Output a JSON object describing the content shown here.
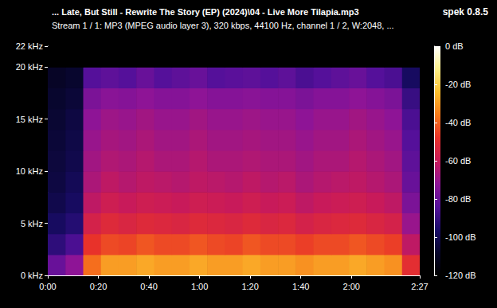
{
  "chart_data": {
    "type": "heatmap",
    "title": "... Late, But Still - Rewrite The Story (EP) (2024)\\04 - Live More Tilapia.mp3",
    "subtitle": "Stream 1 / 1: MP3 (MPEG audio layer 3), 320 kbps, 44100 Hz, channel 1 / 2, W:2048, ...",
    "annotations": [
      "spek 0.8.5"
    ],
    "xlim": [
      0,
      147
    ],
    "xticks": [
      {
        "value": 0,
        "label": "0:00"
      },
      {
        "value": 20,
        "label": "0:20"
      },
      {
        "value": 40,
        "label": "0:40"
      },
      {
        "value": 60,
        "label": "1:00"
      },
      {
        "value": 80,
        "label": "1:20"
      },
      {
        "value": 100,
        "label": "1:40"
      },
      {
        "value": 120,
        "label": "2:00"
      },
      {
        "value": 147,
        "label": "2:27"
      }
    ],
    "ylim": [
      0,
      22
    ],
    "yticks": [
      {
        "value": 0,
        "label": "0 kHz"
      },
      {
        "value": 5,
        "label": "5 kHz"
      },
      {
        "value": 10,
        "label": "10 kHz"
      },
      {
        "value": 15,
        "label": "15 kHz"
      },
      {
        "value": 20,
        "label": "20 kHz"
      },
      {
        "value": 22,
        "label": "22 kHz"
      }
    ],
    "x_bins": [
      0,
      7,
      14,
      21,
      28,
      35,
      42,
      49,
      56,
      63,
      70,
      77,
      84,
      91,
      98,
      105,
      112,
      119,
      126,
      133,
      140,
      147
    ],
    "y_bins": [
      0,
      2,
      4,
      6,
      8,
      10,
      12,
      14,
      16,
      18,
      20,
      22
    ],
    "cells": [
      [
        -80,
        -72,
        -38,
        -30,
        -30,
        -28,
        -30,
        -30,
        -28,
        -30,
        -30,
        -28,
        -30,
        -30,
        -32,
        -30,
        -30,
        -28,
        -30,
        -32,
        -50
      ],
      [
        -92,
        -86,
        -48,
        -44,
        -45,
        -42,
        -44,
        -44,
        -42,
        -44,
        -45,
        -42,
        -44,
        -44,
        -46,
        -44,
        -44,
        -42,
        -44,
        -46,
        -62
      ],
      [
        -98,
        -94,
        -56,
        -52,
        -54,
        -52,
        -53,
        -54,
        -52,
        -53,
        -54,
        -52,
        -54,
        -53,
        -56,
        -54,
        -53,
        -52,
        -54,
        -56,
        -70
      ],
      [
        -102,
        -98,
        -62,
        -58,
        -60,
        -58,
        -59,
        -60,
        -58,
        -59,
        -60,
        -58,
        -60,
        -59,
        -62,
        -60,
        -59,
        -58,
        -60,
        -62,
        -76
      ],
      [
        -104,
        -100,
        -66,
        -62,
        -64,
        -62,
        -63,
        -64,
        -62,
        -63,
        -64,
        -62,
        -64,
        -63,
        -66,
        -64,
        -63,
        -62,
        -64,
        -66,
        -80
      ],
      [
        -105,
        -102,
        -68,
        -65,
        -66,
        -64,
        -66,
        -66,
        -64,
        -66,
        -66,
        -65,
        -66,
        -66,
        -68,
        -66,
        -66,
        -64,
        -66,
        -68,
        -82
      ],
      [
        -106,
        -103,
        -70,
        -67,
        -68,
        -66,
        -68,
        -68,
        -66,
        -68,
        -68,
        -67,
        -68,
        -68,
        -70,
        -68,
        -68,
        -66,
        -68,
        -70,
        -84
      ],
      [
        -107,
        -104,
        -72,
        -69,
        -70,
        -68,
        -70,
        -70,
        -68,
        -70,
        -70,
        -69,
        -70,
        -70,
        -72,
        -70,
        -70,
        -68,
        -70,
        -72,
        -86
      ],
      [
        -108,
        -106,
        -76,
        -73,
        -74,
        -72,
        -74,
        -74,
        -72,
        -74,
        -74,
        -73,
        -74,
        -74,
        -76,
        -74,
        -74,
        -72,
        -74,
        -76,
        -90
      ],
      [
        -110,
        -108,
        -84,
        -82,
        -84,
        -80,
        -84,
        -82,
        -80,
        -84,
        -83,
        -82,
        -84,
        -82,
        -86,
        -84,
        -82,
        -80,
        -84,
        -86,
        -98
      ],
      [
        -120,
        -120,
        -120,
        -120,
        -120,
        -120,
        -120,
        -120,
        -120,
        -120,
        -120,
        -120,
        -120,
        -120,
        -120,
        -120,
        -120,
        -120,
        -120,
        -120,
        -120
      ]
    ],
    "colorbar": {
      "range": [
        -120,
        0
      ],
      "ticks": [
        {
          "value": 0,
          "label": "0 dB"
        },
        {
          "value": -20,
          "label": "-20 dB"
        },
        {
          "value": -40,
          "label": "-40 dB"
        },
        {
          "value": -60,
          "label": "-60 dB"
        },
        {
          "value": -80,
          "label": "-80 dB"
        },
        {
          "value": -100,
          "label": "-100 dB"
        },
        {
          "value": -120,
          "label": "-120 dB"
        }
      ]
    }
  }
}
